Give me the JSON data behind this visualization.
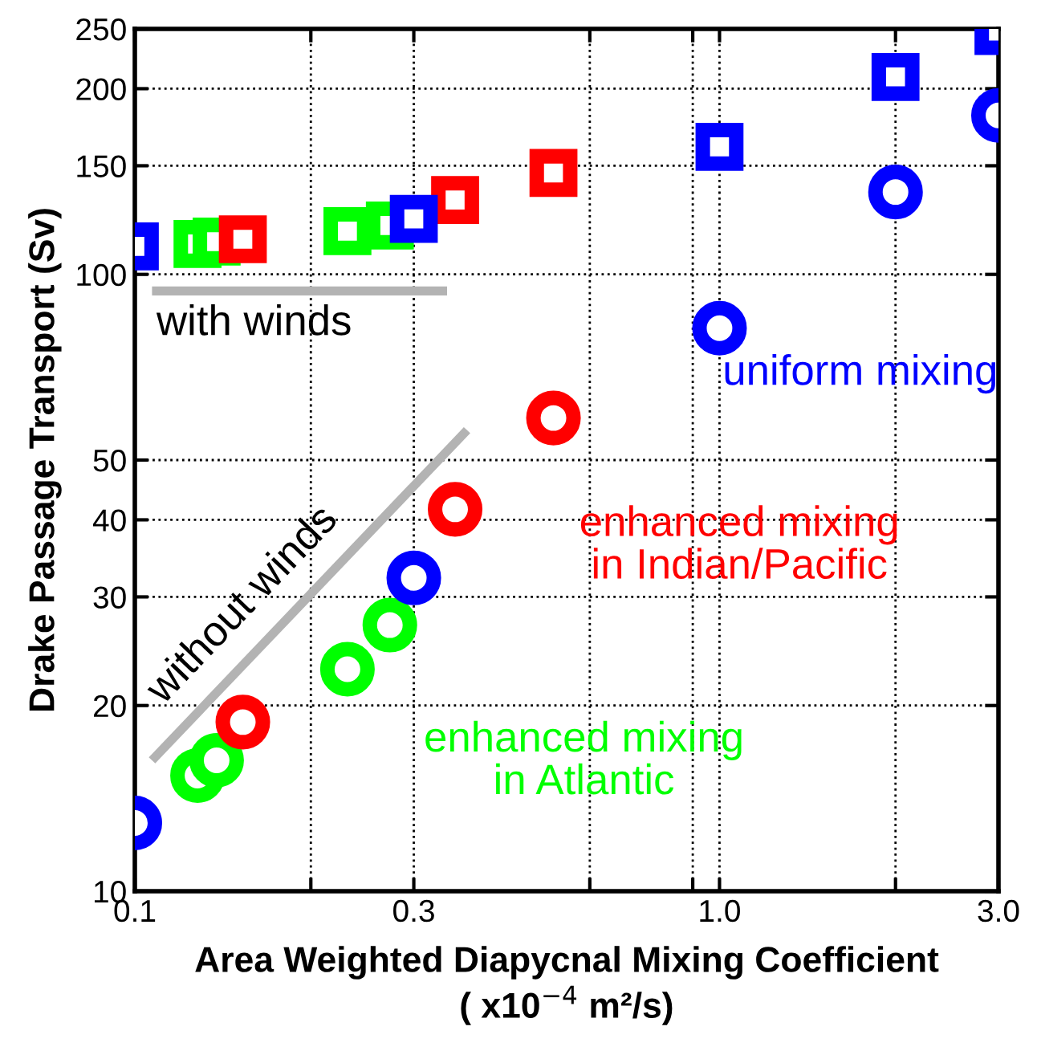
{
  "chart_data": {
    "type": "scatter",
    "log": "xy",
    "xlabel": "Area Weighted Diapycnal Mixing Coefficient\n( x10$^{−4}$ m²/s)",
    "ylabel": "Drake Passage Transport (Sv)",
    "xlim": [
      0.1,
      3.0
    ],
    "ylim": [
      10,
      250
    ],
    "xticks": [
      0.1,
      {
        "value": 0.2,
        "label": null
      },
      0.3,
      {
        "value": 0.6,
        "label": null
      },
      {
        "value": 0.9,
        "label": null
      },
      {
        "value": 1.0,
        "label": "1.0"
      },
      {
        "value": 2.0,
        "label": null
      },
      {
        "value": 3.0,
        "label": "3.0"
      }
    ],
    "yticks": [
      10,
      20,
      30,
      40,
      50,
      100,
      150,
      200,
      250
    ],
    "grid": true,
    "line_style": "dotted",
    "series": [
      {
        "color": "#0000ff",
        "marker": "square",
        "x": [
          0.1,
          0.3,
          1.0,
          2.0,
          3.0
        ],
        "values": [
          111,
          123,
          161,
          209,
          248
        ]
      },
      {
        "color": "#ff0000",
        "marker": "square",
        "x": [
          0.153,
          0.353,
          0.52
        ],
        "values": [
          114,
          132,
          146
        ]
      },
      {
        "color": "#00ff00",
        "marker": "square",
        "x": [
          0.128,
          0.138,
          0.231,
          0.273
        ],
        "values": [
          112,
          113,
          117.5,
          120
        ]
      },
      {
        "name": "uniform mixing",
        "color": "#0000ff",
        "marker": "circle",
        "x": [
          0.1,
          0.3,
          1.0,
          2.0,
          3.0
        ],
        "values": [
          12.9,
          32.2,
          81.8,
          136,
          181
        ]
      },
      {
        "name": "enhanced mixing\nin Indian/Pacific",
        "color": "#ff0000",
        "marker": "circle",
        "x": [
          0.153,
          0.353,
          0.52
        ],
        "values": [
          18.8,
          41.6,
          58.5
        ]
      },
      {
        "name": "enhanced mixing\nin Atlantic",
        "color": "#00ff00",
        "marker": "circle",
        "x": [
          0.128,
          0.138,
          0.231,
          0.273
        ],
        "values": [
          15.4,
          16.3,
          22.9,
          27.0
        ]
      },
      {
        "type": "line",
        "color": "#b3b3b3",
        "marker": "none",
        "line_style": "solid",
        "x": [
          0.107,
          0.342
        ],
        "values": [
          94,
          94
        ]
      },
      {
        "type": "line",
        "color": "#b3b3b3",
        "marker": "none",
        "line_style": "solid",
        "x": [
          0.107,
          0.37
        ],
        "values": [
          16.3,
          55.9
        ]
      }
    ],
    "annotations": [
      {
        "text": "with winds",
        "x": 0.107,
        "y": 94
      },
      {
        "text": "without winds",
        "x": 0.107,
        "y": 16.3
      }
    ]
  }
}
